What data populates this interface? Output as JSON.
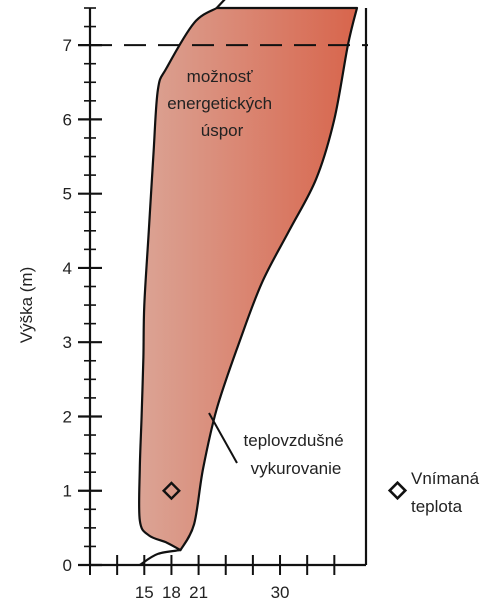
{
  "chart_data": {
    "type": "area",
    "title": "",
    "ylabel": "Výška (m)",
    "xlabel": "",
    "xlim": [
      9,
      39.5
    ],
    "ylim": [
      0,
      7.5
    ],
    "x_ticks": [
      15,
      18,
      21,
      30
    ],
    "x_minor_ticks": [
      9,
      12,
      15,
      18,
      21,
      24,
      27,
      30,
      33,
      36
    ],
    "y_ticks": [
      0,
      1,
      2,
      3,
      4,
      5,
      6,
      7
    ],
    "y_minor_step": 0.25,
    "grid": false,
    "colors": {
      "fill_left": "#dba495",
      "fill_right": "#d8654c",
      "stroke": "#111111"
    },
    "region": {
      "name": "teplovzdušné vykurovanie",
      "left_boundary": [
        [
          23,
          7.5
        ],
        [
          20.5,
          7.3
        ],
        [
          17.5,
          6.7
        ],
        [
          16.5,
          6.4
        ],
        [
          16,
          5.5
        ],
        [
          15.5,
          4.5
        ],
        [
          15,
          3.5
        ],
        [
          14.9,
          2.8
        ],
        [
          14.7,
          2
        ],
        [
          14.5,
          1.3
        ],
        [
          14.5,
          0.6
        ],
        [
          15.5,
          0.4
        ],
        [
          17.5,
          0.3
        ],
        [
          19,
          0.2
        ]
      ],
      "right_boundary": [
        [
          38.5,
          7.5
        ],
        [
          37.5,
          7
        ],
        [
          36,
          6
        ],
        [
          34,
          5.2
        ],
        [
          31,
          4.5
        ],
        [
          28,
          3.8
        ],
        [
          25.5,
          3
        ],
        [
          23,
          2.1
        ],
        [
          21.5,
          1.3
        ],
        [
          20.5,
          0.55
        ],
        [
          19,
          0.2
        ]
      ]
    },
    "upper_line": [
      [
        23,
        7.5
      ],
      [
        25.3,
        7.8
      ]
    ],
    "lower_line": [
      [
        14.5,
        0
      ],
      [
        16.5,
        0.15
      ],
      [
        19,
        0.2
      ]
    ],
    "reference_line": {
      "y": 7,
      "style": "dashed"
    },
    "point": {
      "name": "Vnímaná teplota",
      "x": 18,
      "y": 1,
      "marker": "diamond"
    },
    "annotations": {
      "savings": [
        "možnosť",
        "energetických",
        "úspor"
      ],
      "heating": [
        "teplovzdušné",
        "vykurovanie"
      ],
      "legend": [
        "Vnímaná",
        "teplota"
      ]
    }
  }
}
